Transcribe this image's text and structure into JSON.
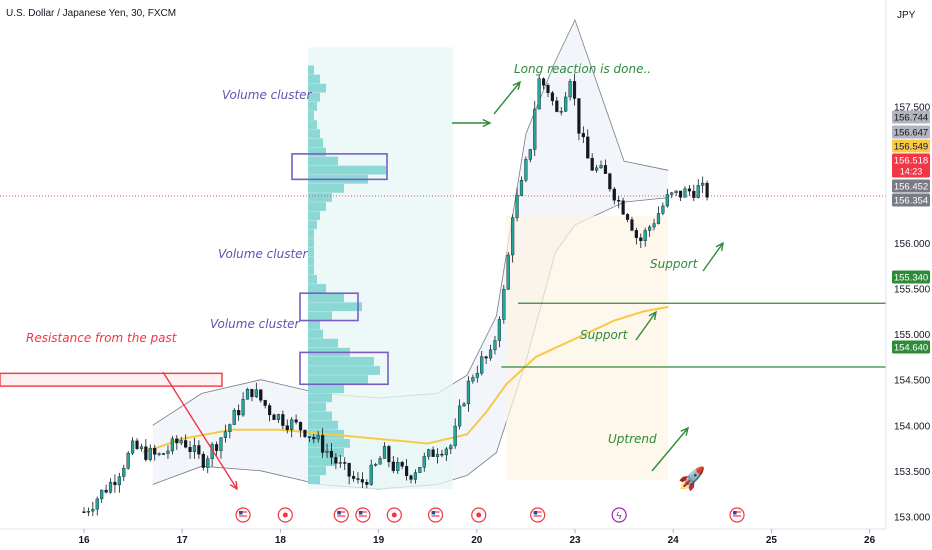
{
  "header": {
    "title": "U.S. Dollar / Japanese Yen, 30, FXCM",
    "currency": "JPY"
  },
  "chart_data": {
    "type": "candlestick",
    "symbol": "USDJPY",
    "timeframe": "30",
    "source": "FXCM",
    "ylim": [
      152.85,
      158.45
    ],
    "y_ticks": [
      "157.500",
      "156.000",
      "155.500",
      "155.000",
      "154.500",
      "154.000",
      "153.500",
      "153.000"
    ],
    "x_ticks": [
      "16",
      "17",
      "18",
      "19",
      "20",
      "23",
      "24",
      "25",
      "26"
    ],
    "price_labels": [
      {
        "value": 156.744,
        "text": "156.744",
        "bg": "#b2b5be",
        "fg": "#131722"
      },
      {
        "value": 156.647,
        "text": "156.647",
        "bg": "#b2b5be",
        "fg": "#131722"
      },
      {
        "value": 156.549,
        "text": "156.549",
        "bg": "#f7c948",
        "fg": "#131722"
      },
      {
        "value": 156.518,
        "text": "156.518",
        "sub": "14:23",
        "bg": "#f23645",
        "fg": "#ffffff"
      },
      {
        "value": 156.452,
        "text": "156.452",
        "bg": "#787b86",
        "fg": "#ffffff"
      },
      {
        "value": 156.354,
        "text": "156.354",
        "bg": "#787b86",
        "fg": "#ffffff"
      },
      {
        "value": 155.34,
        "text": "155.340",
        "bg": "#2e8b3a",
        "fg": "#ffffff"
      },
      {
        "value": 154.64,
        "text": "154.640",
        "bg": "#2e8b3a",
        "fg": "#ffffff"
      }
    ],
    "last_price": 156.518,
    "support_levels": [
      155.34,
      154.64
    ],
    "resistance_zone": [
      154.43,
      154.57
    ],
    "close_path": [
      [
        0,
        153.05
      ],
      [
        0.3,
        153.4
      ],
      [
        0.5,
        153.75
      ],
      [
        0.75,
        153.65
      ],
      [
        1.0,
        153.85
      ],
      [
        1.2,
        153.6
      ],
      [
        1.45,
        153.95
      ],
      [
        1.7,
        154.4
      ],
      [
        1.9,
        154.15
      ],
      [
        2.05,
        154.05
      ],
      [
        2.25,
        153.95
      ],
      [
        2.45,
        153.75
      ],
      [
        2.6,
        153.55
      ],
      [
        2.8,
        153.35
      ],
      [
        2.95,
        153.5
      ],
      [
        3.05,
        153.7
      ],
      [
        3.15,
        153.55
      ],
      [
        3.3,
        153.45
      ],
      [
        3.45,
        153.6
      ],
      [
        3.6,
        153.75
      ],
      [
        3.75,
        153.78
      ],
      [
        3.85,
        154.25
      ],
      [
        3.95,
        154.55
      ],
      [
        4.05,
        154.7
      ],
      [
        4.15,
        154.75
      ],
      [
        4.25,
        155.35
      ],
      [
        4.3,
        155.55
      ],
      [
        4.35,
        156.3
      ],
      [
        4.45,
        156.6
      ],
      [
        4.55,
        157.1
      ],
      [
        4.62,
        157.8
      ],
      [
        4.72,
        157.7
      ],
      [
        4.82,
        157.4
      ],
      [
        4.95,
        157.85
      ],
      [
        5.05,
        157.2
      ],
      [
        5.15,
        156.85
      ],
      [
        5.3,
        156.75
      ],
      [
        5.45,
        156.45
      ],
      [
        5.55,
        156.3
      ],
      [
        5.65,
        156.0
      ],
      [
        5.8,
        156.25
      ],
      [
        5.95,
        156.5
      ],
      [
        6.1,
        156.55
      ],
      [
        6.25,
        156.6
      ],
      [
        6.35,
        156.55
      ]
    ],
    "ma_path": [
      [
        0.6,
        153.7
      ],
      [
        1.0,
        153.85
      ],
      [
        1.5,
        153.95
      ],
      [
        2.0,
        153.95
      ],
      [
        2.5,
        153.9
      ],
      [
        3.0,
        153.85
      ],
      [
        3.5,
        153.8
      ],
      [
        3.9,
        153.9
      ],
      [
        4.1,
        154.15
      ],
      [
        4.3,
        154.45
      ],
      [
        4.6,
        154.75
      ],
      [
        5.0,
        154.95
      ],
      [
        5.4,
        155.15
      ],
      [
        5.7,
        155.25
      ],
      [
        5.95,
        155.3
      ]
    ],
    "band_upper": [
      [
        0.7,
        154.0
      ],
      [
        1.2,
        154.35
      ],
      [
        1.8,
        154.5
      ],
      [
        2.4,
        154.35
      ],
      [
        3.0,
        154.3
      ],
      [
        3.6,
        154.35
      ],
      [
        3.9,
        154.55
      ],
      [
        4.2,
        155.2
      ],
      [
        4.5,
        157.2
      ],
      [
        4.8,
        158.0
      ],
      [
        5.0,
        158.45
      ],
      [
        5.5,
        156.9
      ],
      [
        5.95,
        156.8
      ]
    ],
    "band_lower": [
      [
        0.7,
        153.35
      ],
      [
        1.2,
        153.55
      ],
      [
        1.8,
        153.5
      ],
      [
        2.4,
        153.35
      ],
      [
        3.0,
        153.3
      ],
      [
        3.6,
        153.35
      ],
      [
        3.9,
        153.45
      ],
      [
        4.2,
        153.7
      ],
      [
        4.5,
        154.7
      ],
      [
        4.8,
        155.9
      ],
      [
        5.0,
        156.2
      ],
      [
        5.5,
        156.45
      ],
      [
        5.95,
        156.5
      ]
    ],
    "volume_profile": {
      "rows": [
        [
          157.9,
          2
        ],
        [
          157.8,
          4
        ],
        [
          157.7,
          6
        ],
        [
          157.6,
          4
        ],
        [
          157.5,
          3
        ],
        [
          157.4,
          2
        ],
        [
          157.3,
          3
        ],
        [
          157.2,
          4
        ],
        [
          157.1,
          5
        ],
        [
          157.0,
          6
        ],
        [
          156.9,
          10
        ],
        [
          156.8,
          26
        ],
        [
          156.7,
          20
        ],
        [
          156.6,
          12
        ],
        [
          156.5,
          8
        ],
        [
          156.4,
          6
        ],
        [
          156.3,
          4
        ],
        [
          156.2,
          3
        ],
        [
          156.1,
          2
        ],
        [
          156.0,
          2
        ],
        [
          155.9,
          2
        ],
        [
          155.8,
          2
        ],
        [
          155.7,
          2
        ],
        [
          155.6,
          3
        ],
        [
          155.5,
          6
        ],
        [
          155.4,
          12
        ],
        [
          155.3,
          18
        ],
        [
          155.2,
          8
        ],
        [
          155.1,
          4
        ],
        [
          155.0,
          5
        ],
        [
          154.9,
          10
        ],
        [
          154.8,
          14
        ],
        [
          154.7,
          22
        ],
        [
          154.6,
          24
        ],
        [
          154.5,
          20
        ],
        [
          154.4,
          12
        ],
        [
          154.3,
          8
        ],
        [
          154.2,
          6
        ],
        [
          154.1,
          8
        ],
        [
          154.0,
          10
        ],
        [
          153.9,
          12
        ],
        [
          153.8,
          14
        ],
        [
          153.7,
          12
        ],
        [
          153.6,
          9
        ],
        [
          153.5,
          6
        ],
        [
          153.4,
          4
        ]
      ]
    },
    "clusters": [
      {
        "label": "Volume cluster",
        "y": [
          156.7,
          156.98
        ]
      },
      {
        "label": "Volume cluster",
        "y": [
          155.15,
          155.45
        ]
      },
      {
        "label": "Volume cluster",
        "y": [
          154.45,
          154.8
        ]
      }
    ],
    "annotations": {
      "resistance": "Resistance from the past",
      "cluster_labels": [
        "Volume cluster",
        "Volume cluster",
        "Volume cluster"
      ],
      "long_reaction": "Long reaction is done..",
      "support_1": "Support",
      "support_2": "Support",
      "uptrend": "Uptrend"
    },
    "event_markers": [
      {
        "x": 1.62,
        "type": "us-flag"
      },
      {
        "x": 2.05,
        "type": "target"
      },
      {
        "x": 2.62,
        "type": "us-flag"
      },
      {
        "x": 2.84,
        "type": "us-flag"
      },
      {
        "x": 3.16,
        "type": "target"
      },
      {
        "x": 3.58,
        "type": "us-flag"
      },
      {
        "x": 4.02,
        "type": "target"
      },
      {
        "x": 4.62,
        "type": "us-flag"
      },
      {
        "x": 5.45,
        "type": "lightning"
      },
      {
        "x": 6.65,
        "type": "us-flag"
      }
    ],
    "colors": {
      "up": "#26a69a",
      "down": "#131722",
      "wick": "#131722",
      "ma": "#f7c948",
      "support_line": "#2e8b3a",
      "resistance": "#f23645",
      "cluster_box": "#7b5cc7",
      "volume_profile": "#7fd4d0",
      "annotation_green": "#2e8b3a",
      "annotation_purple": "#6a4fb0"
    }
  }
}
